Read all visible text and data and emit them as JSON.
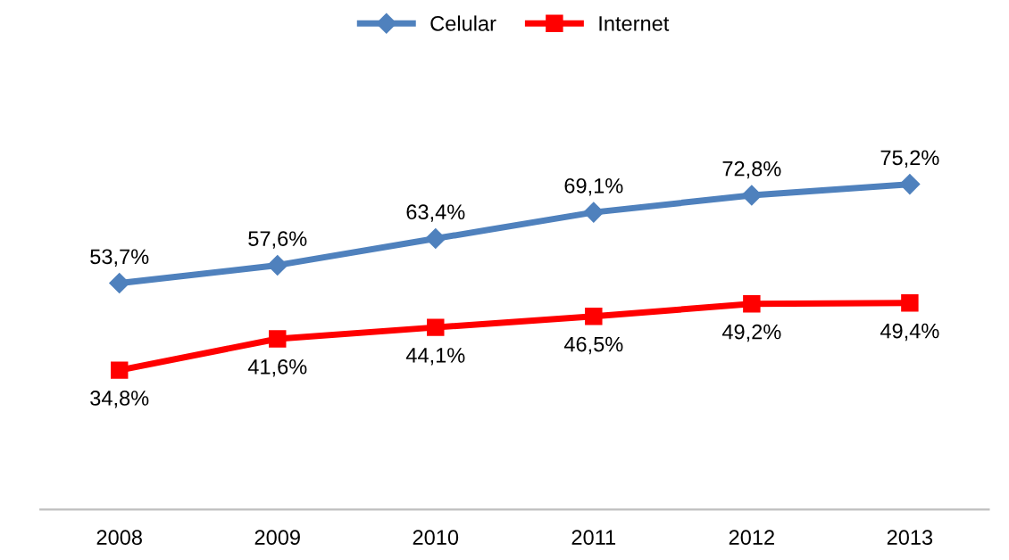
{
  "chart_data": {
    "type": "line",
    "categories": [
      "2008",
      "2009",
      "2010",
      "2011",
      "2012",
      "2013"
    ],
    "series": [
      {
        "name": "Celular",
        "color": "#4f81bd",
        "marker": "diamond",
        "values": [
          53.7,
          57.6,
          63.4,
          69.1,
          72.8,
          75.2
        ],
        "value_labels": [
          "53,7%",
          "57,6%",
          "63,4%",
          "69,1%",
          "72,8%",
          "75,2%"
        ]
      },
      {
        "name": "Internet",
        "color": "#ff0000",
        "marker": "square",
        "values": [
          34.8,
          41.6,
          44.1,
          46.5,
          49.2,
          49.4
        ],
        "value_labels": [
          "34,8%",
          "41,6%",
          "44,1%",
          "46,5%",
          "49,2%",
          "49,4%"
        ]
      }
    ],
    "grid": false,
    "legend": "top",
    "line_style": "solid"
  }
}
